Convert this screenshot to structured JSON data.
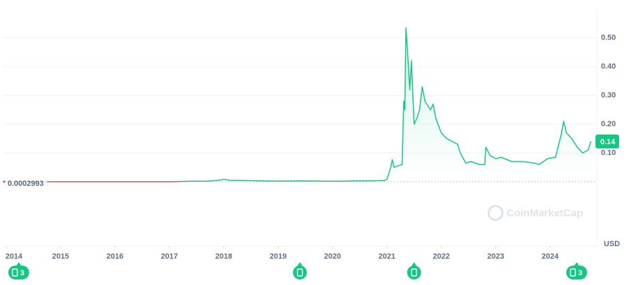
{
  "chart_data": {
    "type": "line",
    "color": "#16c784",
    "down_color": "#ea3943",
    "x": [
      2014.75,
      2015.5,
      2016.3,
      2017.0,
      2017.4,
      2017.7,
      2017.95,
      2018.0,
      2018.1,
      2018.4,
      2018.7,
      2019.0,
      2019.4,
      2019.8,
      2020.2,
      2020.6,
      2020.95,
      2021.0,
      2021.07,
      2021.1,
      2021.13,
      2021.2,
      2021.28,
      2021.31,
      2021.33,
      2021.35,
      2021.38,
      2021.42,
      2021.45,
      2021.5,
      2021.55,
      2021.6,
      2021.65,
      2021.7,
      2021.8,
      2021.85,
      2021.9,
      2022.0,
      2022.1,
      2022.2,
      2022.3,
      2022.35,
      2022.45,
      2022.55,
      2022.7,
      2022.8,
      2022.82,
      2022.9,
      2023.0,
      2023.1,
      2023.3,
      2023.5,
      2023.7,
      2023.8,
      2023.95,
      2024.1,
      2024.2,
      2024.25,
      2024.3,
      2024.4,
      2024.5,
      2024.6,
      2024.7,
      2024.75
    ],
    "values": [
      0.0003,
      0.0002,
      0.0002,
      0.0002,
      0.002,
      0.002,
      0.006,
      0.009,
      0.005,
      0.004,
      0.003,
      0.002,
      0.003,
      0.002,
      0.002,
      0.003,
      0.004,
      0.008,
      0.05,
      0.077,
      0.05,
      0.055,
      0.06,
      0.28,
      0.25,
      0.535,
      0.45,
      0.32,
      0.42,
      0.2,
      0.22,
      0.25,
      0.33,
      0.28,
      0.25,
      0.27,
      0.22,
      0.17,
      0.15,
      0.14,
      0.13,
      0.1,
      0.065,
      0.07,
      0.06,
      0.06,
      0.12,
      0.09,
      0.08,
      0.085,
      0.07,
      0.07,
      0.065,
      0.06,
      0.08,
      0.085,
      0.16,
      0.21,
      0.17,
      0.15,
      0.12,
      0.1,
      0.11,
      0.14
    ],
    "xlim": [
      2013.95,
      2024.86
    ],
    "ylim": [
      -0.224,
      0.598
    ],
    "xticks": [
      2014,
      2015,
      2016,
      2017,
      2018,
      2019,
      2020,
      2021,
      2022,
      2023,
      2024
    ],
    "yticks": [
      {
        "value": 0.1,
        "label": "0.10"
      },
      {
        "value": 0.2,
        "label": "0.20"
      },
      {
        "value": 0.3,
        "label": "0.30"
      },
      {
        "value": 0.4,
        "label": "0.40"
      },
      {
        "value": 0.5,
        "label": "0.50"
      }
    ],
    "grid": true,
    "start_price": {
      "value": 0.0002993,
      "label": "0.0002993"
    },
    "current_price": 0.14,
    "unit": "USD",
    "watermark": "CoinMarketCap",
    "events": [
      {
        "x": 2014,
        "label": "3"
      },
      {
        "x": 2019.4
      },
      {
        "x": 2021.5
      },
      {
        "x": 2024.4,
        "label": "3"
      }
    ]
  }
}
